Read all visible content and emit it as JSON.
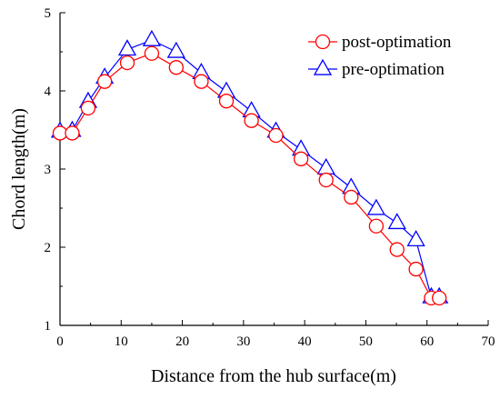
{
  "chart_data": {
    "type": "line",
    "xlabel": "Distance from the hub surface(m)",
    "ylabel": "Chord length(m)",
    "xlim": [
      0,
      70
    ],
    "ylim": [
      1,
      5
    ],
    "xticks": [
      "0",
      "10",
      "20",
      "30",
      "40",
      "50",
      "60",
      "70"
    ],
    "yticks": [
      "1",
      "2",
      "3",
      "4",
      "5"
    ],
    "grid": false,
    "legend_position": "top-right",
    "series": [
      {
        "name": "post-optimation",
        "marker": "circle",
        "color": "#ff0000",
        "x": [
          0,
          2,
          4.6,
          7.3,
          11,
          15,
          19,
          23.1,
          27.2,
          31.3,
          35.3,
          39.4,
          43.5,
          47.6,
          51.7,
          55.1,
          58.2,
          60.7,
          62
        ],
        "y": [
          3.46,
          3.46,
          3.78,
          4.12,
          4.36,
          4.48,
          4.3,
          4.12,
          3.87,
          3.62,
          3.43,
          3.13,
          2.86,
          2.64,
          2.27,
          1.97,
          1.72,
          1.35,
          1.35
        ]
      },
      {
        "name": "pre-optimation",
        "marker": "triangle",
        "color": "#0000ff",
        "x": [
          0,
          2,
          4.6,
          7.3,
          11,
          15,
          19,
          23.1,
          27.2,
          31.3,
          35.3,
          39.4,
          43.5,
          47.6,
          51.7,
          55.1,
          58.2,
          60.7,
          62
        ],
        "y": [
          3.48,
          3.49,
          3.86,
          4.17,
          4.53,
          4.65,
          4.5,
          4.23,
          3.99,
          3.74,
          3.48,
          3.25,
          3.01,
          2.76,
          2.49,
          2.31,
          2.09,
          1.36,
          1.36
        ]
      }
    ]
  }
}
